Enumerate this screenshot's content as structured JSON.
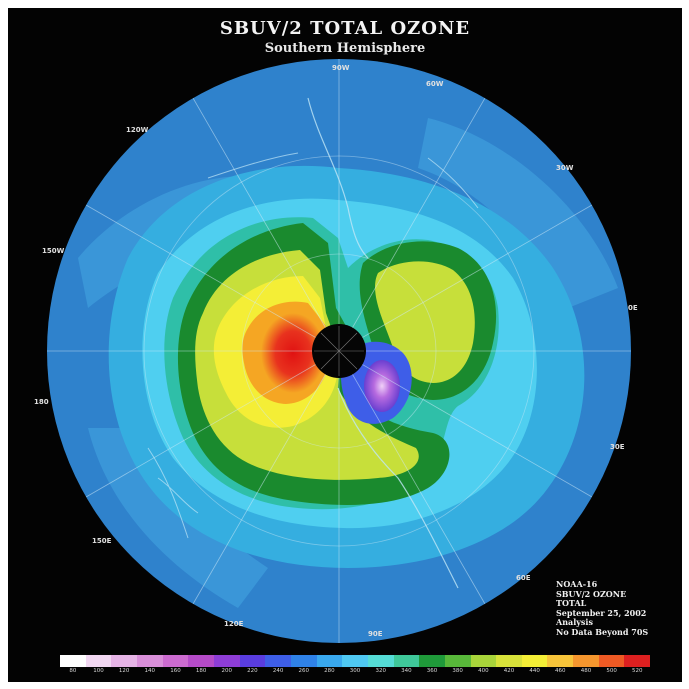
{
  "map": {
    "title": "SBUV/2 TOTAL OZONE",
    "subtitle": "Southern Hemisphere",
    "longitude_labels": [
      "90W",
      "60W",
      "30W",
      "0E",
      "30E",
      "60E",
      "90E",
      "120E",
      "150E",
      "180",
      "150W",
      "120W"
    ],
    "info_lines": [
      "NOAA-16",
      "SBUV/2 OZONE",
      "TOTAL",
      "September 25, 2002",
      "Analysis",
      "No Data Beyond 70S"
    ],
    "colors": {
      "frame": "#030303",
      "ocean_outer": "#2f82cc",
      "mid_band": "#35aee0",
      "inner_cyan": "#4fcff0",
      "ring_teal": "#2fbfa8",
      "ring_green": "#1a8a2e",
      "inner_green": "#3fb23a",
      "yellow_green": "#c7df3a",
      "yellow": "#f4ee36",
      "orange": "#f5a623",
      "red": "#e21e1e",
      "ozone_hole_purple": "#9b3fcf",
      "pole_disc": "#050505"
    },
    "colorbar": {
      "ticks": [
        "80",
        "100",
        "120",
        "140",
        "160",
        "180",
        "200",
        "220",
        "240",
        "260",
        "280",
        "300",
        "320",
        "340",
        "360",
        "380",
        "400",
        "420",
        "440",
        "460",
        "480",
        "500",
        "520"
      ],
      "colors": [
        "#ffffff",
        "#f2d8f2",
        "#e6b4e6",
        "#d98fd9",
        "#cc6bd0",
        "#b54bc8",
        "#8e3dd6",
        "#5a3de0",
        "#3e5ee8",
        "#2f82e8",
        "#39a8ee",
        "#4fc8f2",
        "#55dcd6",
        "#3fc89a",
        "#1f9a3a",
        "#58b83a",
        "#a8d43a",
        "#d8e23a",
        "#f4ee36",
        "#f7c43a",
        "#f5962e",
        "#ee5a24",
        "#dd2020"
      ]
    }
  }
}
